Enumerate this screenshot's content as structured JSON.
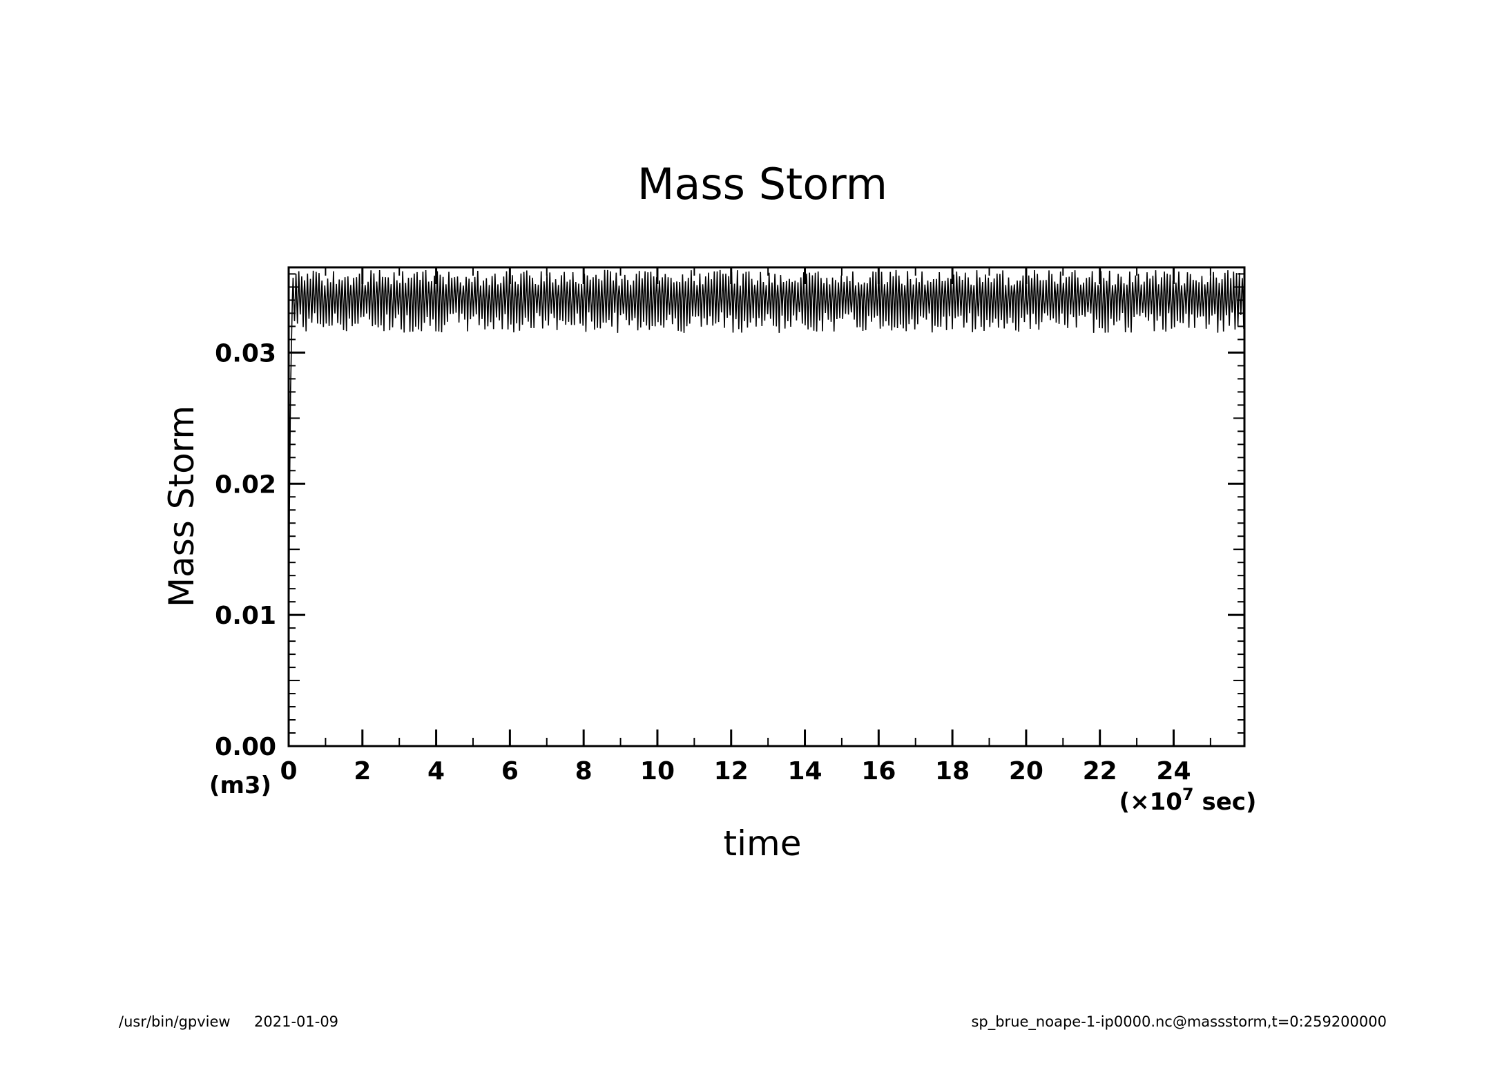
{
  "chart_data": {
    "type": "line",
    "title": "Mass Storm",
    "xlabel": "time",
    "ylabel": "Mass Storm",
    "x_units": "sec",
    "x_multiplier_base": "×10",
    "x_multiplier_exp": "7",
    "y_units": "(m3)",
    "xlim": [
      0,
      25.92
    ],
    "ylim": [
      0,
      0.0365
    ],
    "x_ticks": [
      0,
      2,
      4,
      6,
      8,
      10,
      12,
      14,
      16,
      18,
      20,
      22,
      24
    ],
    "x_tick_labels": [
      "0",
      "2",
      "4",
      "6",
      "8",
      "10",
      "12",
      "14",
      "16",
      "18",
      "20",
      "22",
      "24"
    ],
    "y_ticks": [
      0.0,
      0.01,
      0.02,
      0.03
    ],
    "y_tick_labels": [
      "0.00",
      "0.01",
      "0.02",
      "0.03"
    ],
    "grid": false,
    "series": [
      {
        "description_ramp": "initial rise from 0 at x=0 to ~0.034 within ~0.1 x1e7 sec",
        "ramp": {
          "x": [
            0,
            0.02,
            0.05,
            0.1
          ],
          "y": [
            0,
            0.018,
            0.027,
            0.034
          ]
        },
        "oscillation": {
          "x_start": 0.1,
          "x_end": 25.92,
          "mean": 0.0342,
          "min": 0.0315,
          "max": 0.0363,
          "cycles": 330
        }
      }
    ],
    "color": "#000000"
  },
  "footer": {
    "left_program": "/usr/bin/gpview",
    "left_date": "2021-01-09",
    "right_source": "sp_brue_noape-1-ip0000.nc@massstorm,t=0:259200000"
  }
}
